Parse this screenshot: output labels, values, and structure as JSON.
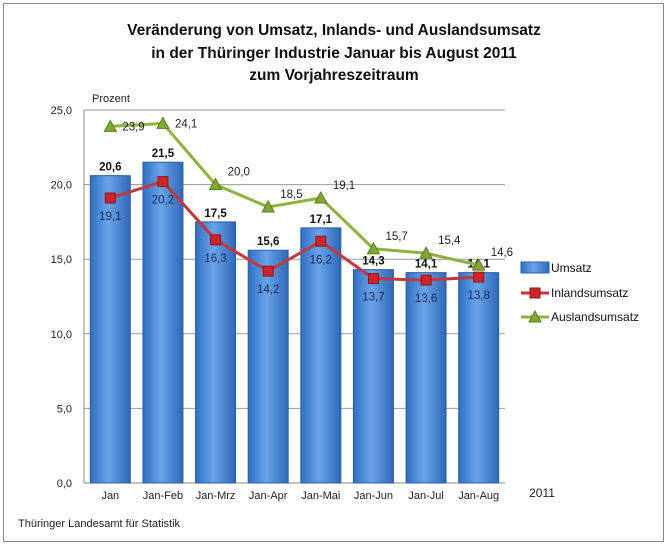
{
  "chart_data": {
    "type": "bar+line",
    "title": [
      "Veränderung  von Umsatz, Inlands- und Auslandsumsatz",
      "in der Thüringer Industrie Januar bis August 2011",
      "zum Vorjahreszeitraum"
    ],
    "ylabel": "Prozent",
    "xnote": "2011",
    "source": "Thüringer Landesamt für Statistik",
    "ylim": [
      0,
      25
    ],
    "yticks": [
      "0,0",
      "5,0",
      "10,0",
      "15,0",
      "20,0",
      "25,0"
    ],
    "grid": true,
    "legend": "right",
    "categories": [
      "Jan",
      "Jan-Feb",
      "Jan-Mrz",
      "Jan-Apr",
      "Jan-Mai",
      "Jan-Jun",
      "Jan-Jul",
      "Jan-Aug"
    ],
    "series": [
      {
        "name": "Umsatz",
        "type": "bar",
        "color": "#4a86d4",
        "values": [
          20.6,
          21.5,
          17.5,
          15.6,
          17.1,
          14.3,
          14.1,
          14.1
        ],
        "labels": [
          "20,6",
          "21,5",
          "17,5",
          "15,6",
          "17,1",
          "14,3",
          "14,1",
          "14,1"
        ]
      },
      {
        "name": "Inlandsumsatz",
        "type": "line",
        "color": "#c0393b",
        "values": [
          19.1,
          20.2,
          16.3,
          14.2,
          16.2,
          13.7,
          13.6,
          13.8
        ],
        "labels": [
          "19,1",
          "20,2",
          "16,3",
          "14,2",
          "16,2",
          "13,7",
          "13,6",
          "13,8"
        ]
      },
      {
        "name": "Auslandsumsatz",
        "type": "line",
        "color": "#8db33c",
        "values": [
          23.9,
          24.1,
          20.0,
          18.5,
          19.1,
          15.7,
          15.4,
          14.6
        ],
        "labels": [
          "23,9",
          "24,1",
          "20,0",
          "18,5",
          "19,1",
          "15,7",
          "15,4",
          "14,6"
        ]
      }
    ]
  }
}
